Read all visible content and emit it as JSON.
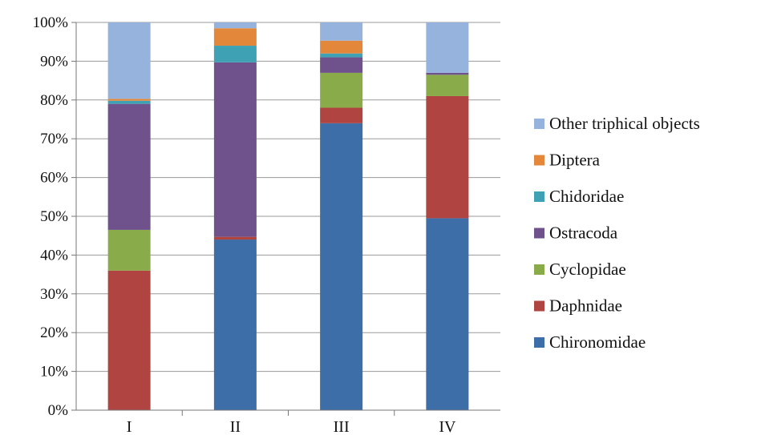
{
  "chart_data": {
    "type": "bar",
    "stacked": "percent",
    "categories": [
      "I",
      "II",
      "III",
      "IV"
    ],
    "series": [
      {
        "name": "Chironomidae",
        "color": "#3d6ea8",
        "values": [
          0,
          44,
          74,
          49.5
        ]
      },
      {
        "name": "Daphnidae",
        "color": "#b04441",
        "values": [
          36,
          0.7,
          4,
          31.5
        ]
      },
      {
        "name": "Cyclopidae",
        "color": "#8aab4a",
        "values": [
          10.5,
          0,
          9,
          5.5
        ]
      },
      {
        "name": "Ostracoda",
        "color": "#6f528c",
        "values": [
          32.5,
          45,
          4,
          0.5
        ]
      },
      {
        "name": "Chidoridae",
        "color": "#3ea1b4",
        "values": [
          0.8,
          4.3,
          1,
          0
        ]
      },
      {
        "name": "Diptera",
        "color": "#e3883a",
        "values": [
          0.5,
          4.5,
          3.3,
          0
        ]
      },
      {
        "name": "Other triphical objects",
        "color": "#95b3dc",
        "values": [
          19.7,
          1.5,
          4.7,
          13
        ]
      }
    ],
    "yticks": [
      "0%",
      "10%",
      "20%",
      "30%",
      "40%",
      "50%",
      "60%",
      "70%",
      "80%",
      "90%",
      "100%"
    ],
    "ylim": [
      0,
      100
    ],
    "grid": true,
    "legend_position": "right",
    "title": "",
    "xlabel": "",
    "ylabel": ""
  }
}
